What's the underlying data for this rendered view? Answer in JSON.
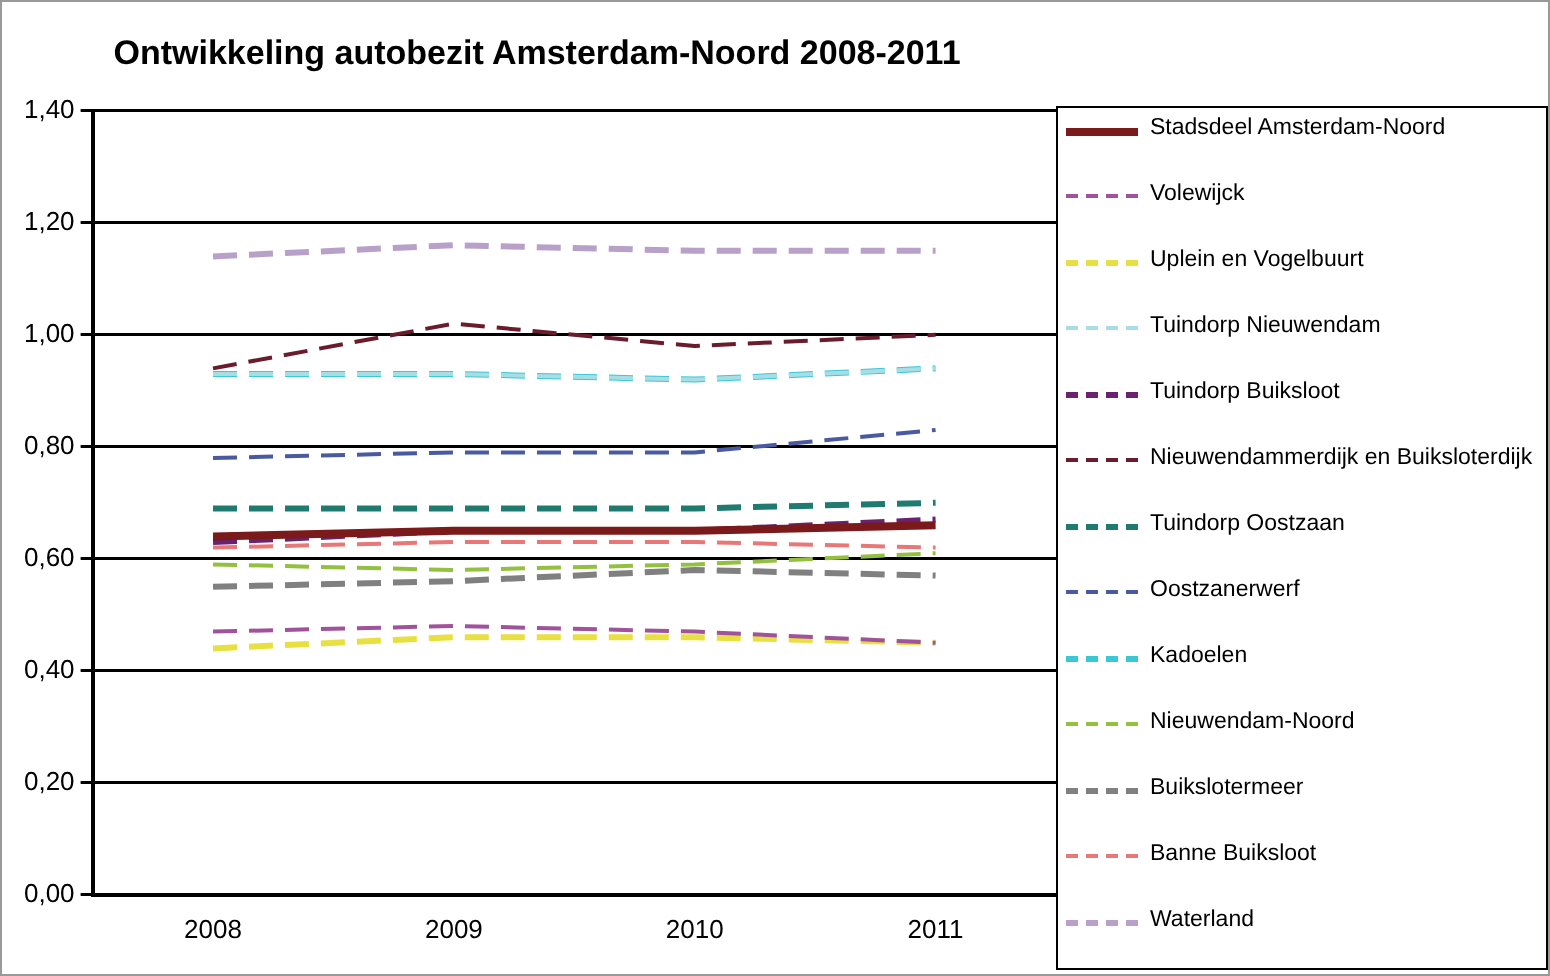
{
  "chart_data": {
    "type": "line",
    "title": "Ontwikkeling autobezit Amsterdam-Noord 2008-2011",
    "categories": [
      "2008",
      "2009",
      "2010",
      "2011"
    ],
    "ylim": [
      0,
      1.4
    ],
    "yticks": [
      {
        "value": 0,
        "label": "0,00"
      },
      {
        "value": 0.2,
        "label": "0,20"
      },
      {
        "value": 0.4,
        "label": "0,40"
      },
      {
        "value": 0.6,
        "label": "0,60"
      },
      {
        "value": 0.8,
        "label": "0,80"
      },
      {
        "value": 1.0,
        "label": "1,00"
      },
      {
        "value": 1.2,
        "label": "1,20"
      },
      {
        "value": 1.4,
        "label": "1,40"
      }
    ],
    "grid": "y",
    "legend": "right",
    "marker": "none",
    "line_style": "dashed",
    "series": [
      {
        "name": "Stadsdeel Amsterdam-Noord",
        "color": "#7b1a1a",
        "line_style": "solid",
        "values": [
          0.64,
          0.65,
          0.65,
          0.66
        ]
      },
      {
        "name": "Volewijck",
        "color": "#a0529a",
        "values": [
          0.47,
          0.48,
          0.47,
          0.45
        ]
      },
      {
        "name": "Uplein en Vogelbuurt",
        "color": "#e8e040",
        "values": [
          0.44,
          0.46,
          0.46,
          0.45
        ]
      },
      {
        "name": "Tuindorp Nieuwendam",
        "color": "#a8dde4",
        "values": [
          0.93,
          0.93,
          0.92,
          0.94
        ]
      },
      {
        "name": "Tuindorp Buiksloot",
        "color": "#6a2270",
        "values": [
          0.63,
          0.65,
          0.65,
          0.67
        ]
      },
      {
        "name": "Nieuwendammerdijk en Buiksloterdijk",
        "color": "#6b1c2c",
        "values": [
          0.94,
          1.02,
          0.98,
          1.0
        ]
      },
      {
        "name": "Tuindorp Oostzaan",
        "color": "#1f7a70",
        "values": [
          0.69,
          0.69,
          0.69,
          0.7
        ]
      },
      {
        "name": "Oostzanerwerf",
        "color": "#4a5aa0",
        "values": [
          0.78,
          0.79,
          0.79,
          0.83
        ]
      },
      {
        "name": "Kadoelen",
        "color": "#38c8d8",
        "values": [
          0.93,
          0.93,
          0.92,
          0.94
        ]
      },
      {
        "name": "Nieuwendam-Noord",
        "color": "#94c040",
        "values": [
          0.59,
          0.58,
          0.59,
          0.61
        ]
      },
      {
        "name": "Buikslotermeer",
        "color": "#808080",
        "values": [
          0.55,
          0.56,
          0.58,
          0.57
        ]
      },
      {
        "name": "Banne Buiksloot",
        "color": "#e87878",
        "values": [
          0.62,
          0.63,
          0.63,
          0.62
        ]
      },
      {
        "name": "Waterland",
        "color": "#b8a0c8",
        "values": [
          1.14,
          1.16,
          1.15,
          1.15
        ]
      }
    ]
  }
}
